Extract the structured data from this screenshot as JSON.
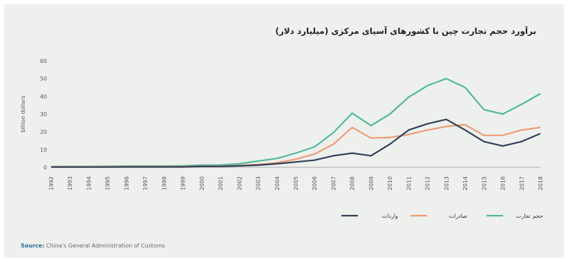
{
  "chart_data": {
    "type": "line",
    "title": "برآورد حجم تجارت چین با کشورهای آسیای مرکزی (میلیارد دلار)",
    "ylabel": "billion dollars",
    "xlabel": "",
    "ylim": [
      0,
      60
    ],
    "yticks": [
      0,
      10,
      20,
      30,
      40,
      50,
      60
    ],
    "grid": false,
    "legend_position": "bottom-right",
    "categories": [
      "1992",
      "1993",
      "1994",
      "1995",
      "1996",
      "1997",
      "1998",
      "1999",
      "2000",
      "2001",
      "2002",
      "2003",
      "2004",
      "2005",
      "2006",
      "2007",
      "2008",
      "2009",
      "2010",
      "2011",
      "2012",
      "2013",
      "2014",
      "2015",
      "2016",
      "2017",
      "2018"
    ],
    "series": [
      {
        "name": "حجم تجارت",
        "color": "#4fb89a",
        "values": [
          0.4,
          0.5,
          0.5,
          0.6,
          0.7,
          0.7,
          0.7,
          0.8,
          1.2,
          1.3,
          2.0,
          3.5,
          5.0,
          8.0,
          11.5,
          19.5,
          30.5,
          23.5,
          30.0,
          39.5,
          46.0,
          50.0,
          45.0,
          32.5,
          30.0,
          35.5,
          41.5
        ]
      },
      {
        "name": "صادرات",
        "color": "#ef9a72",
        "values": [
          0.3,
          0.3,
          0.3,
          0.3,
          0.4,
          0.4,
          0.4,
          0.4,
          0.6,
          0.7,
          1.0,
          1.6,
          2.6,
          4.5,
          7.5,
          13.0,
          22.5,
          16.5,
          16.8,
          18.5,
          21.0,
          23.0,
          24.0,
          18.0,
          18.0,
          21.0,
          22.5
        ]
      },
      {
        "name": "واردات",
        "color": "#2e3e55",
        "values": [
          0.1,
          0.1,
          0.1,
          0.1,
          0.2,
          0.2,
          0.2,
          0.2,
          0.5,
          0.5,
          0.8,
          1.2,
          2.0,
          3.0,
          4.0,
          6.5,
          8.0,
          6.5,
          13.0,
          21.0,
          24.5,
          27.0,
          21.0,
          14.5,
          12.0,
          14.5,
          19.0
        ]
      }
    ]
  },
  "source": {
    "label": "Source:",
    "text": "China's General Administration of Customs"
  }
}
